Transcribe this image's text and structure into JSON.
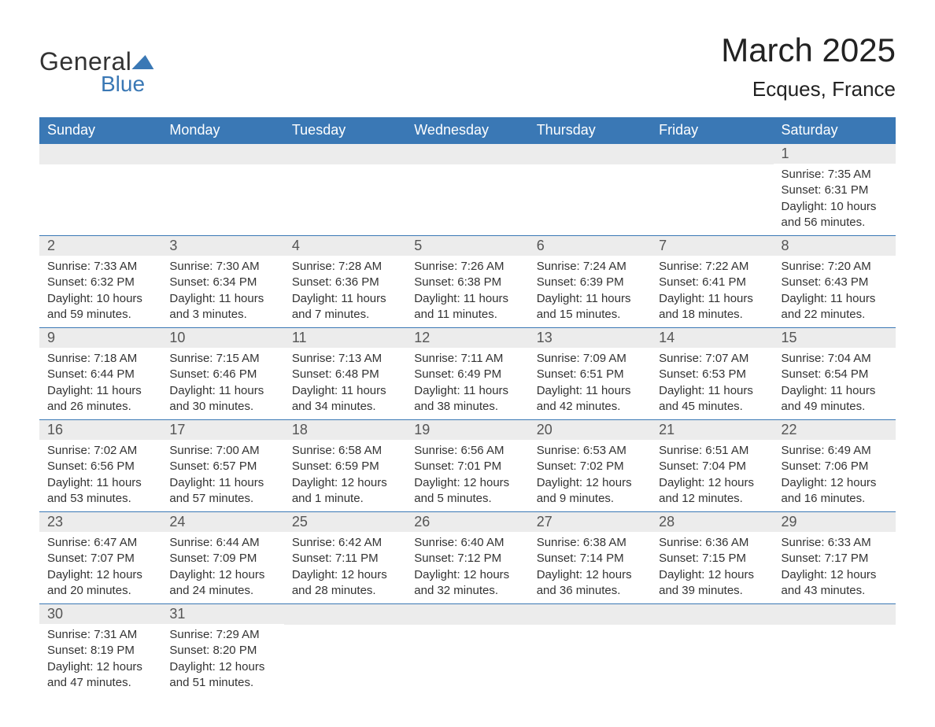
{
  "brand": {
    "word1": "General",
    "word2": "Blue"
  },
  "title": "March 2025",
  "location": "Ecques, France",
  "colors": {
    "header_bg": "#3a78b5",
    "header_text": "#ffffff",
    "daynum_bg": "#ececec",
    "daynum_text": "#555555",
    "body_text": "#333333",
    "rule": "#3a78b5",
    "page_bg": "#ffffff"
  },
  "typography": {
    "title_pt": 42,
    "location_pt": 26,
    "dayhead_pt": 18,
    "daynum_pt": 18,
    "body_pt": 15,
    "family": "Arial"
  },
  "day_headers": [
    "Sunday",
    "Monday",
    "Tuesday",
    "Wednesday",
    "Thursday",
    "Friday",
    "Saturday"
  ],
  "weeks": [
    [
      {
        "n": "",
        "sunrise": "",
        "sunset": "",
        "daylight": ""
      },
      {
        "n": "",
        "sunrise": "",
        "sunset": "",
        "daylight": ""
      },
      {
        "n": "",
        "sunrise": "",
        "sunset": "",
        "daylight": ""
      },
      {
        "n": "",
        "sunrise": "",
        "sunset": "",
        "daylight": ""
      },
      {
        "n": "",
        "sunrise": "",
        "sunset": "",
        "daylight": ""
      },
      {
        "n": "",
        "sunrise": "",
        "sunset": "",
        "daylight": ""
      },
      {
        "n": "1",
        "sunrise": "Sunrise: 7:35 AM",
        "sunset": "Sunset: 6:31 PM",
        "daylight": "Daylight: 10 hours and 56 minutes."
      }
    ],
    [
      {
        "n": "2",
        "sunrise": "Sunrise: 7:33 AM",
        "sunset": "Sunset: 6:32 PM",
        "daylight": "Daylight: 10 hours and 59 minutes."
      },
      {
        "n": "3",
        "sunrise": "Sunrise: 7:30 AM",
        "sunset": "Sunset: 6:34 PM",
        "daylight": "Daylight: 11 hours and 3 minutes."
      },
      {
        "n": "4",
        "sunrise": "Sunrise: 7:28 AM",
        "sunset": "Sunset: 6:36 PM",
        "daylight": "Daylight: 11 hours and 7 minutes."
      },
      {
        "n": "5",
        "sunrise": "Sunrise: 7:26 AM",
        "sunset": "Sunset: 6:38 PM",
        "daylight": "Daylight: 11 hours and 11 minutes."
      },
      {
        "n": "6",
        "sunrise": "Sunrise: 7:24 AM",
        "sunset": "Sunset: 6:39 PM",
        "daylight": "Daylight: 11 hours and 15 minutes."
      },
      {
        "n": "7",
        "sunrise": "Sunrise: 7:22 AM",
        "sunset": "Sunset: 6:41 PM",
        "daylight": "Daylight: 11 hours and 18 minutes."
      },
      {
        "n": "8",
        "sunrise": "Sunrise: 7:20 AM",
        "sunset": "Sunset: 6:43 PM",
        "daylight": "Daylight: 11 hours and 22 minutes."
      }
    ],
    [
      {
        "n": "9",
        "sunrise": "Sunrise: 7:18 AM",
        "sunset": "Sunset: 6:44 PM",
        "daylight": "Daylight: 11 hours and 26 minutes."
      },
      {
        "n": "10",
        "sunrise": "Sunrise: 7:15 AM",
        "sunset": "Sunset: 6:46 PM",
        "daylight": "Daylight: 11 hours and 30 minutes."
      },
      {
        "n": "11",
        "sunrise": "Sunrise: 7:13 AM",
        "sunset": "Sunset: 6:48 PM",
        "daylight": "Daylight: 11 hours and 34 minutes."
      },
      {
        "n": "12",
        "sunrise": "Sunrise: 7:11 AM",
        "sunset": "Sunset: 6:49 PM",
        "daylight": "Daylight: 11 hours and 38 minutes."
      },
      {
        "n": "13",
        "sunrise": "Sunrise: 7:09 AM",
        "sunset": "Sunset: 6:51 PM",
        "daylight": "Daylight: 11 hours and 42 minutes."
      },
      {
        "n": "14",
        "sunrise": "Sunrise: 7:07 AM",
        "sunset": "Sunset: 6:53 PM",
        "daylight": "Daylight: 11 hours and 45 minutes."
      },
      {
        "n": "15",
        "sunrise": "Sunrise: 7:04 AM",
        "sunset": "Sunset: 6:54 PM",
        "daylight": "Daylight: 11 hours and 49 minutes."
      }
    ],
    [
      {
        "n": "16",
        "sunrise": "Sunrise: 7:02 AM",
        "sunset": "Sunset: 6:56 PM",
        "daylight": "Daylight: 11 hours and 53 minutes."
      },
      {
        "n": "17",
        "sunrise": "Sunrise: 7:00 AM",
        "sunset": "Sunset: 6:57 PM",
        "daylight": "Daylight: 11 hours and 57 minutes."
      },
      {
        "n": "18",
        "sunrise": "Sunrise: 6:58 AM",
        "sunset": "Sunset: 6:59 PM",
        "daylight": "Daylight: 12 hours and 1 minute."
      },
      {
        "n": "19",
        "sunrise": "Sunrise: 6:56 AM",
        "sunset": "Sunset: 7:01 PM",
        "daylight": "Daylight: 12 hours and 5 minutes."
      },
      {
        "n": "20",
        "sunrise": "Sunrise: 6:53 AM",
        "sunset": "Sunset: 7:02 PM",
        "daylight": "Daylight: 12 hours and 9 minutes."
      },
      {
        "n": "21",
        "sunrise": "Sunrise: 6:51 AM",
        "sunset": "Sunset: 7:04 PM",
        "daylight": "Daylight: 12 hours and 12 minutes."
      },
      {
        "n": "22",
        "sunrise": "Sunrise: 6:49 AM",
        "sunset": "Sunset: 7:06 PM",
        "daylight": "Daylight: 12 hours and 16 minutes."
      }
    ],
    [
      {
        "n": "23",
        "sunrise": "Sunrise: 6:47 AM",
        "sunset": "Sunset: 7:07 PM",
        "daylight": "Daylight: 12 hours and 20 minutes."
      },
      {
        "n": "24",
        "sunrise": "Sunrise: 6:44 AM",
        "sunset": "Sunset: 7:09 PM",
        "daylight": "Daylight: 12 hours and 24 minutes."
      },
      {
        "n": "25",
        "sunrise": "Sunrise: 6:42 AM",
        "sunset": "Sunset: 7:11 PM",
        "daylight": "Daylight: 12 hours and 28 minutes."
      },
      {
        "n": "26",
        "sunrise": "Sunrise: 6:40 AM",
        "sunset": "Sunset: 7:12 PM",
        "daylight": "Daylight: 12 hours and 32 minutes."
      },
      {
        "n": "27",
        "sunrise": "Sunrise: 6:38 AM",
        "sunset": "Sunset: 7:14 PM",
        "daylight": "Daylight: 12 hours and 36 minutes."
      },
      {
        "n": "28",
        "sunrise": "Sunrise: 6:36 AM",
        "sunset": "Sunset: 7:15 PM",
        "daylight": "Daylight: 12 hours and 39 minutes."
      },
      {
        "n": "29",
        "sunrise": "Sunrise: 6:33 AM",
        "sunset": "Sunset: 7:17 PM",
        "daylight": "Daylight: 12 hours and 43 minutes."
      }
    ],
    [
      {
        "n": "30",
        "sunrise": "Sunrise: 7:31 AM",
        "sunset": "Sunset: 8:19 PM",
        "daylight": "Daylight: 12 hours and 47 minutes."
      },
      {
        "n": "31",
        "sunrise": "Sunrise: 7:29 AM",
        "sunset": "Sunset: 8:20 PM",
        "daylight": "Daylight: 12 hours and 51 minutes."
      },
      {
        "n": "",
        "sunrise": "",
        "sunset": "",
        "daylight": ""
      },
      {
        "n": "",
        "sunrise": "",
        "sunset": "",
        "daylight": ""
      },
      {
        "n": "",
        "sunrise": "",
        "sunset": "",
        "daylight": ""
      },
      {
        "n": "",
        "sunrise": "",
        "sunset": "",
        "daylight": ""
      },
      {
        "n": "",
        "sunrise": "",
        "sunset": "",
        "daylight": ""
      }
    ]
  ]
}
